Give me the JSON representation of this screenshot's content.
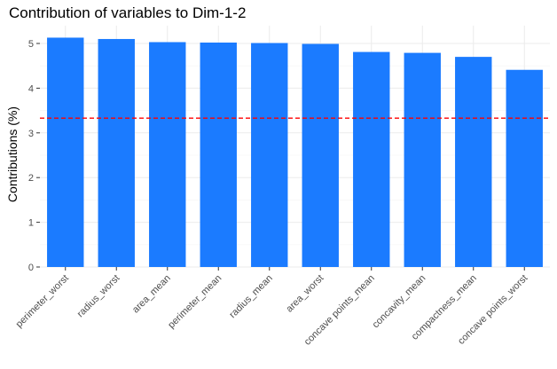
{
  "chart_data": {
    "type": "bar",
    "title": "Contribution of variables to Dim-1-2",
    "xlabel": "",
    "ylabel": "Contributions (%)",
    "categories": [
      "perimeter_worst",
      "radius_worst",
      "area_mean",
      "perimeter_mean",
      "radius_mean",
      "area_worst",
      "concave points_mean",
      "concavity_mean",
      "compactness_mean",
      "concave points_worst"
    ],
    "values": [
      5.13,
      5.1,
      5.03,
      5.02,
      5.01,
      4.99,
      4.81,
      4.79,
      4.7,
      4.41
    ],
    "ylim": [
      0,
      5.4
    ],
    "yticks": [
      0,
      1,
      2,
      3,
      4,
      5
    ],
    "reference_line": {
      "value": 3.33,
      "color": "#ff0000",
      "style": "dashed"
    },
    "bar_color": "#1b7bff",
    "grid": true,
    "legend": "none"
  }
}
